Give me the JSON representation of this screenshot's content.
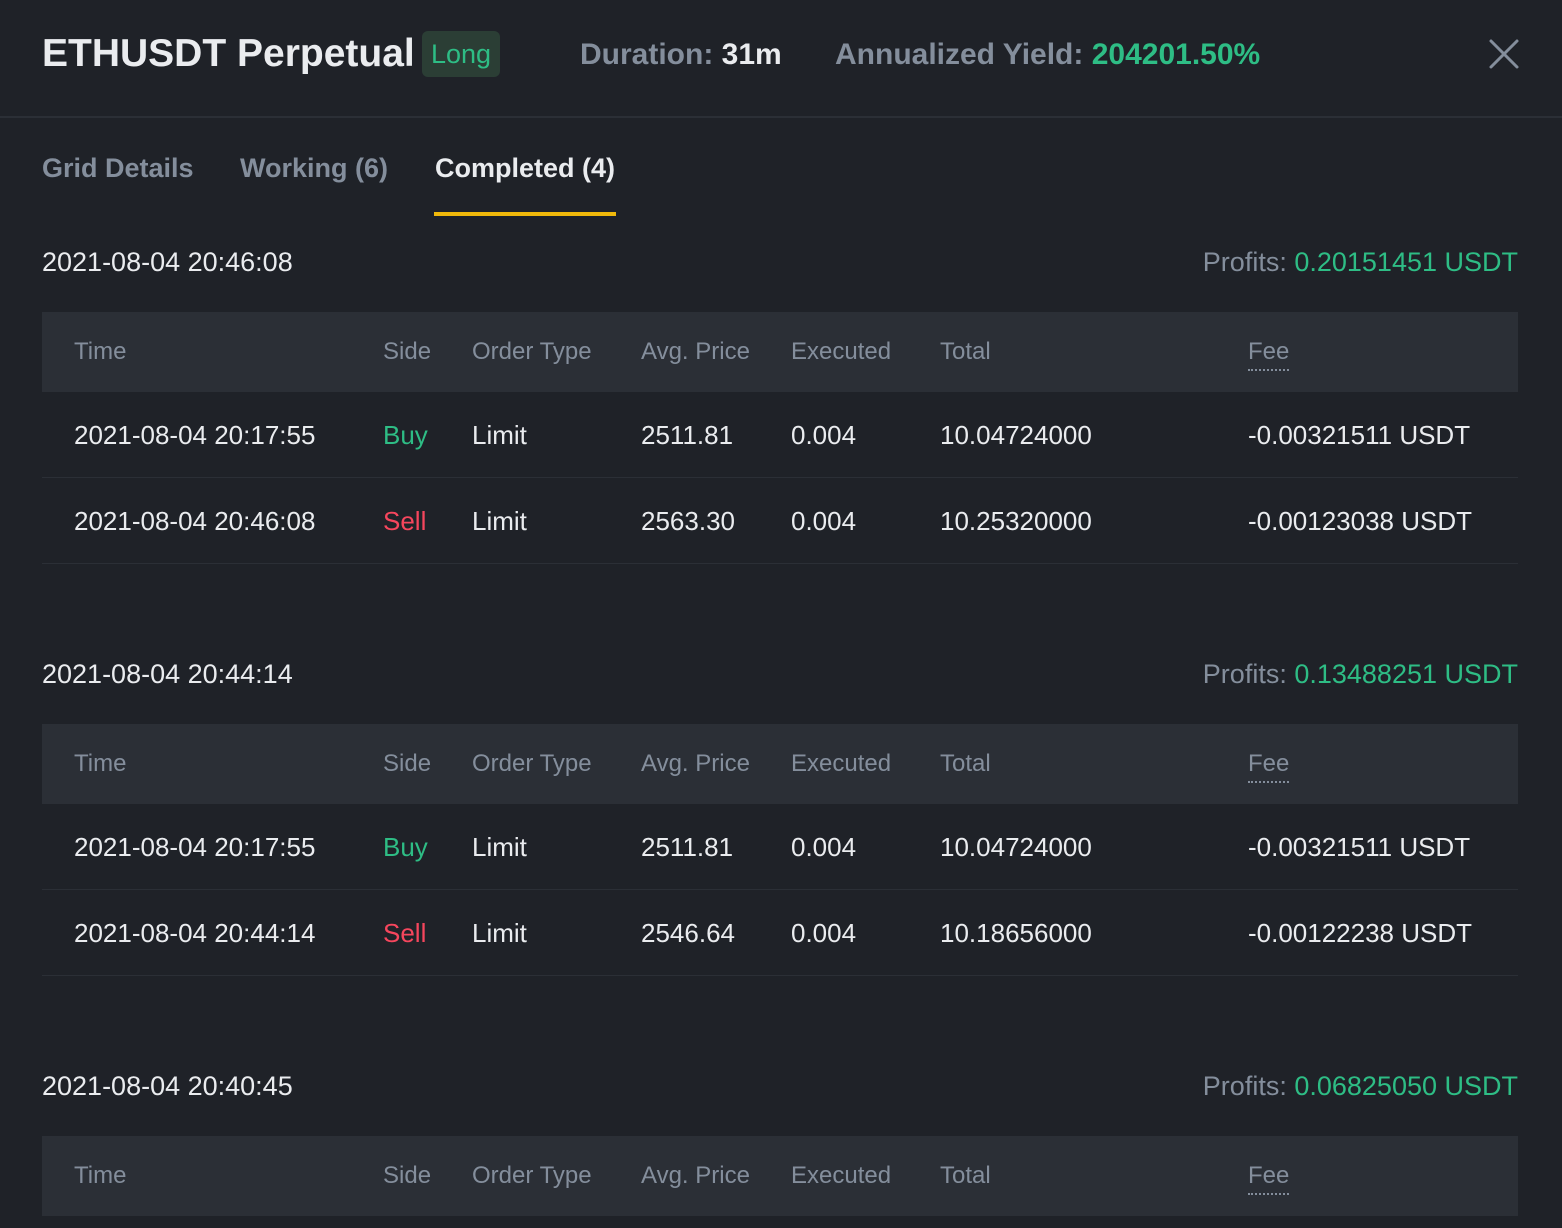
{
  "header": {
    "title": "ETHUSDT Perpetual",
    "badge": "Long",
    "duration_label": "Duration:",
    "duration_value": "31m",
    "yield_label": "Annualized Yield:",
    "yield_value": "204201.50%",
    "close_icon": "close-icon"
  },
  "tabs": [
    {
      "label": "Grid Details",
      "active": false
    },
    {
      "label": "Working (6)",
      "active": false
    },
    {
      "label": "Completed (4)",
      "active": true
    }
  ],
  "columns": [
    "Time",
    "Side",
    "Order Type",
    "Avg. Price",
    "Executed",
    "Total",
    "Fee"
  ],
  "profits_label": "Profits:",
  "groups": [
    {
      "date": "2021-08-04 20:46:08",
      "profits": "0.20151451 USDT",
      "rows": [
        {
          "time": "2021-08-04 20:17:55",
          "side": "Buy",
          "type": "Limit",
          "price": "2511.81",
          "executed": "0.004",
          "total": "10.04724000",
          "fee": "-0.00321511 USDT"
        },
        {
          "time": "2021-08-04 20:46:08",
          "side": "Sell",
          "type": "Limit",
          "price": "2563.30",
          "executed": "0.004",
          "total": "10.25320000",
          "fee": "-0.00123038 USDT"
        }
      ]
    },
    {
      "date": "2021-08-04 20:44:14",
      "profits": "0.13488251 USDT",
      "rows": [
        {
          "time": "2021-08-04 20:17:55",
          "side": "Buy",
          "type": "Limit",
          "price": "2511.81",
          "executed": "0.004",
          "total": "10.04724000",
          "fee": "-0.00321511 USDT"
        },
        {
          "time": "2021-08-04 20:44:14",
          "side": "Sell",
          "type": "Limit",
          "price": "2546.64",
          "executed": "0.004",
          "total": "10.18656000",
          "fee": "-0.00122238 USDT"
        }
      ]
    },
    {
      "date": "2021-08-04 20:40:45",
      "profits": "0.06825050 USDT",
      "rows": []
    }
  ],
  "colors": {
    "background": "#1f2228",
    "buy": "#2ebd85",
    "sell": "#f6465d",
    "accent": "#f0b90b"
  }
}
